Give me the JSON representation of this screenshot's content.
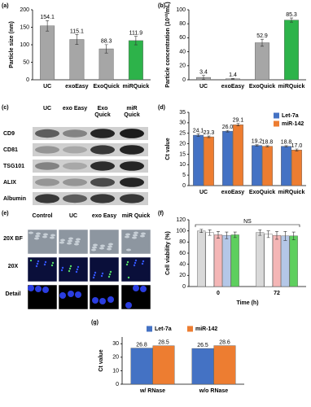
{
  "chart_data": [
    {
      "type": "bar",
      "panel_label": "(a)",
      "ylabel": "Particle size (nm)",
      "categories": [
        "UC",
        "exoEasy",
        "ExoQuick",
        "miRQuick"
      ],
      "series": [
        {
          "color": [
            "#a6a6a6",
            "#a6a6a6",
            "#a6a6a6",
            "#2db34a"
          ],
          "values": [
            154.1,
            115.1,
            88.3,
            111.9
          ],
          "errors": [
            15,
            14,
            12,
            12
          ]
        }
      ],
      "ylim": [
        0,
        200
      ],
      "yticks": [
        0,
        50,
        100,
        150,
        200
      ]
    },
    {
      "type": "bar",
      "panel_label": "(b)",
      "ylabel": "Particle concentration (10¹⁰/mL)",
      "categories": [
        "UC",
        "exoEasy",
        "ExoQuick",
        "miRQuick"
      ],
      "series": [
        {
          "color": [
            "#a6a6a6",
            "#a6a6a6",
            "#a6a6a6",
            "#2db34a"
          ],
          "values": [
            3.4,
            1.4,
            52.9,
            85.3
          ],
          "errors": [
            3,
            0.5,
            5,
            3
          ]
        }
      ],
      "ylim": [
        0,
        100
      ],
      "yticks": [
        0,
        20,
        40,
        60,
        80,
        100
      ]
    },
    {
      "type": "bar",
      "panel_label": "(d)",
      "ylabel": "Ct value",
      "legend": "upper right",
      "categories": [
        "UC",
        "exoEasy",
        "ExoQuick",
        "miRQuick"
      ],
      "series": [
        {
          "name": "Let-7a",
          "color": "#4472c4",
          "values": [
            24.1,
            26.0,
            19.2,
            18.8
          ],
          "value_labels": [
            "24.1",
            "26.0",
            "19.2",
            "18.8"
          ],
          "errors": [
            0.6,
            0.4,
            0.3,
            0.3
          ]
        },
        {
          "name": "miR-142",
          "color": "#ed7d31",
          "values": [
            23.3,
            29.1,
            18.8,
            17.0
          ],
          "value_labels": [
            "23.3",
            "29.1",
            "18.8",
            "17.0"
          ],
          "errors": [
            0.4,
            0.6,
            0.3,
            0.5
          ]
        }
      ],
      "ylim": [
        0,
        35
      ],
      "yticks": [
        0,
        5,
        10,
        15,
        20,
        25,
        30,
        35
      ]
    },
    {
      "type": "bar",
      "panel_label": "(f)",
      "ylabel": "Cell viability (%)",
      "xlabel": "Time (h)",
      "annotation": "NS",
      "categories": [
        "0",
        "72"
      ],
      "series": [
        {
          "color": "#d9d9d9",
          "values": [
            100,
            97
          ],
          "errors": [
            3,
            5
          ]
        },
        {
          "color": "#ffffff",
          "values": [
            97,
            94
          ],
          "errors": [
            5,
            6
          ]
        },
        {
          "color": "#f4b6b6",
          "values": [
            93,
            92
          ],
          "errors": [
            6,
            7
          ]
        },
        {
          "color": "#b4c7e7",
          "values": [
            92,
            91
          ],
          "errors": [
            6,
            8
          ]
        },
        {
          "color": "#5ecf5e",
          "values": [
            93,
            91
          ],
          "errors": [
            5,
            7
          ]
        }
      ],
      "ylim": [
        0,
        120
      ],
      "yticks": [
        0,
        20,
        40,
        60,
        80,
        100,
        120
      ]
    },
    {
      "type": "bar",
      "panel_label": "(g)",
      "ylabel": "Ct value",
      "legend": "upper center",
      "categories": [
        "w/ RNase",
        "w/o RNase"
      ],
      "series": [
        {
          "name": "Let-7a",
          "color": "#4472c4",
          "values": [
            26.8,
            26.5
          ]
        },
        {
          "name": "miR-142",
          "color": "#ed7d31",
          "values": [
            28.5,
            28.6
          ]
        }
      ],
      "ylim": [
        0,
        35
      ],
      "yticks": [
        0,
        10,
        20,
        30
      ]
    }
  ],
  "blot": {
    "panel_label": "(c)",
    "columns": [
      "UC",
      "exo Easy",
      "Exo Quick",
      "miR Quick"
    ],
    "rows": [
      "CD9",
      "CD81",
      "TSG101",
      "ALIX",
      "Albumin"
    ]
  },
  "microscopy": {
    "panel_label": "(e)",
    "columns": [
      "Control",
      "UC",
      "exo Easy",
      "miR Quick"
    ],
    "rows": [
      "20X BF",
      "20X",
      "Detail"
    ]
  }
}
